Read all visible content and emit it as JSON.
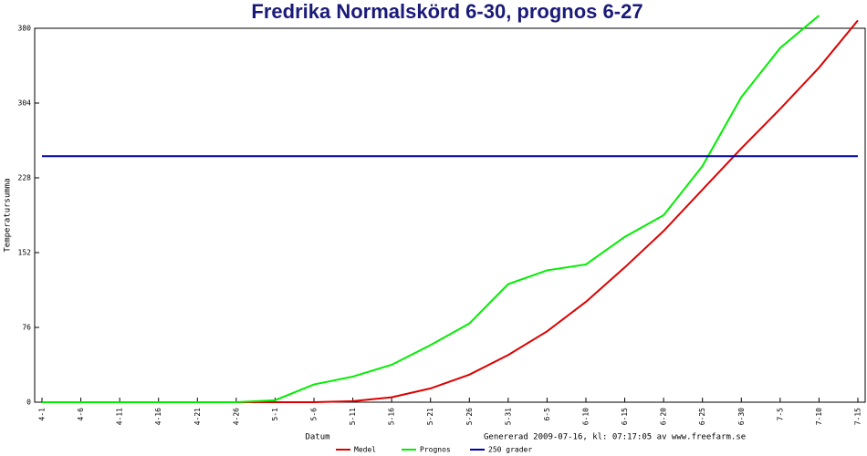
{
  "chart_data": {
    "type": "line",
    "title": "Fredrika Normalskörd 6-30, prognos 6-27",
    "x_label": "Datum",
    "y_label": "Temperatursumma",
    "footer": "Genererad 2009-07-16, kl: 07:17:05 av www.freefarm.se",
    "categories": [
      "4-1",
      "4-6",
      "4-11",
      "4-16",
      "4-21",
      "4-26",
      "5-1",
      "5-6",
      "5-11",
      "5-16",
      "5-21",
      "5-26",
      "5-31",
      "6-5",
      "6-10",
      "6-15",
      "6-20",
      "6-25",
      "6-30",
      "7-5",
      "7-10",
      "7-15"
    ],
    "ylim": [
      0,
      380
    ],
    "yticks": [
      0,
      76,
      152,
      228,
      304,
      380
    ],
    "series": [
      {
        "name": "Medel",
        "color": "#dd0000",
        "values": [
          0,
          0,
          0,
          0,
          0,
          0,
          0,
          0,
          1,
          5,
          14,
          28,
          48,
          72,
          102,
          137,
          174,
          216,
          258,
          298,
          340,
          388
        ]
      },
      {
        "name": "Prognos",
        "color": "#00ee00",
        "values": [
          0,
          0,
          0,
          0,
          0,
          0,
          2,
          18,
          26,
          38,
          58,
          80,
          120,
          134,
          140,
          168,
          190,
          240,
          310,
          360,
          393,
          null
        ]
      },
      {
        "name": "250 grader",
        "color": "#0000aa",
        "values": [
          250,
          250,
          250,
          250,
          250,
          250,
          250,
          250,
          250,
          250,
          250,
          250,
          250,
          250,
          250,
          250,
          250,
          250,
          250,
          250,
          250,
          250
        ]
      }
    ]
  }
}
